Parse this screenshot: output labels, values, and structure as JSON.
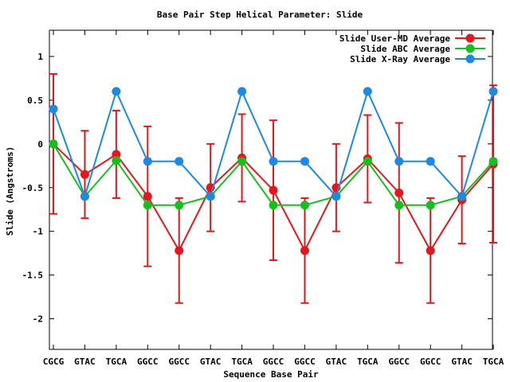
{
  "chart_data": {
    "type": "line",
    "title": "Base Pair Step Helical Parameter: Slide",
    "xlabel": "Sequence Base Pair",
    "ylabel": "Slide (Angstroms)",
    "ylim": [
      -2.35,
      1.3
    ],
    "yticks": [
      1,
      0.5,
      0,
      -0.5,
      -1,
      -1.5,
      -2
    ],
    "ytick_labels": [
      "1",
      "0.5",
      "0",
      "-0.5",
      "-1",
      "-1.5",
      "-2"
    ],
    "legend_position": "top-right",
    "grid": false,
    "categories": [
      "CGCG",
      "GTAC",
      "TGCA",
      "GGCC",
      "GGCC",
      "GTAC",
      "TGCA",
      "GGCC",
      "GGCC",
      "GTAC",
      "TGCA",
      "GGCC",
      "GGCC",
      "GTAC",
      "TGCA"
    ],
    "series": [
      {
        "name": "Slide User-MD Average",
        "color": "#e8151b",
        "values": [
          0.0,
          -0.35,
          -0.12,
          -0.6,
          -1.22,
          -0.5,
          -0.16,
          -0.53,
          -1.22,
          -0.5,
          -0.17,
          -0.56,
          -1.22,
          -0.64,
          -0.23
        ],
        "error_low": [
          -0.8,
          -0.85,
          -0.62,
          -1.4,
          -1.82,
          -1.0,
          -0.66,
          -1.33,
          -1.82,
          -1.0,
          -0.67,
          -1.36,
          -1.82,
          -1.14,
          -1.13
        ],
        "error_high": [
          0.8,
          0.15,
          0.38,
          0.2,
          -0.62,
          0.0,
          0.34,
          0.27,
          -0.62,
          0.0,
          0.33,
          0.24,
          -0.62,
          -0.14,
          0.67
        ]
      },
      {
        "name": "Slide ABC Average",
        "color": "#12c11b",
        "values": [
          0.0,
          -0.6,
          -0.19,
          -0.7,
          -0.7,
          -0.6,
          -0.2,
          -0.7,
          -0.7,
          -0.6,
          -0.2,
          -0.7,
          -0.7,
          -0.6,
          -0.2
        ]
      },
      {
        "name": "Slide X-Ray Average",
        "color": "#1a8ae6",
        "values": [
          0.4,
          -0.6,
          0.6,
          -0.2,
          -0.2,
          -0.6,
          0.6,
          -0.2,
          -0.2,
          -0.6,
          0.6,
          -0.2,
          -0.2,
          -0.6,
          0.6
        ]
      }
    ]
  }
}
